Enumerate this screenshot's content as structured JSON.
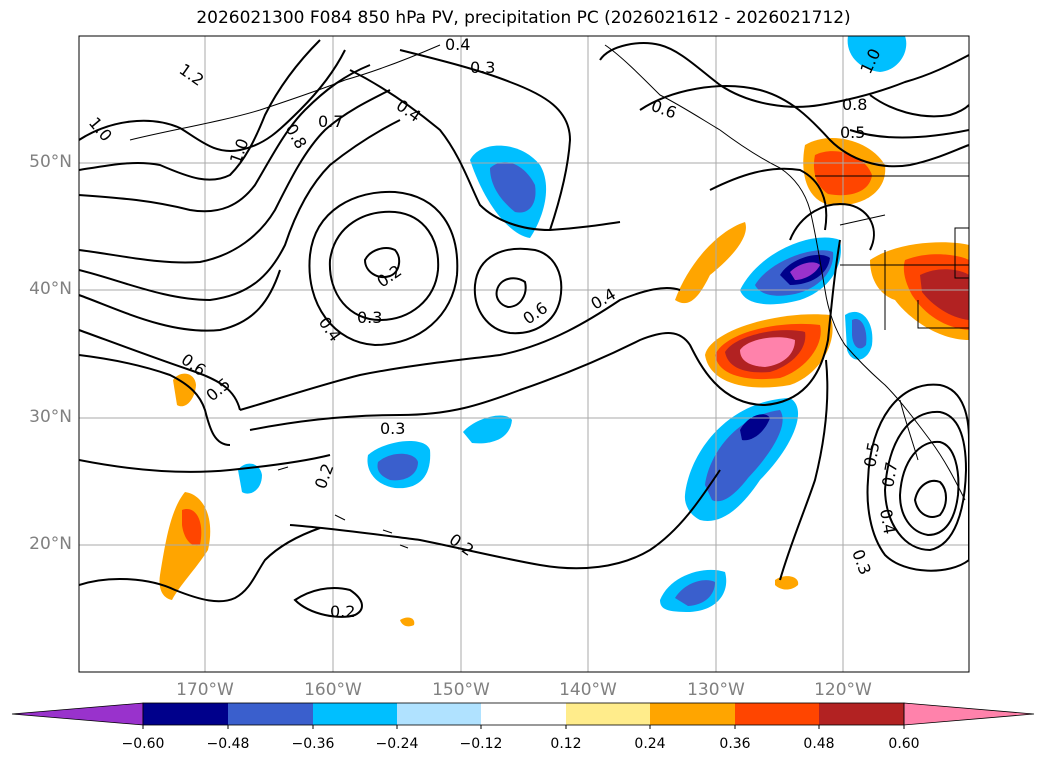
{
  "title": "2026021300 F084 850 hPa PV, precipitation PC (2026021612 - 2026021712)",
  "lat_labels": [
    "50°N",
    "40°N",
    "30°N",
    "20°N"
  ],
  "lon_labels": [
    "170°W",
    "160°W",
    "150°W",
    "140°W",
    "130°W",
    "120°W"
  ],
  "contour_labels": [
    "1.2",
    "1.0",
    "1.0",
    "0.8",
    "0.7",
    "0.4",
    "0.4",
    "0.3",
    "0.6",
    "0.2",
    "0.3",
    "0.4",
    "0.6",
    "0.4",
    "0.6",
    "0.5",
    "0.3",
    "0.2",
    "0.2",
    "0.2",
    "1.0",
    "0.8",
    "0.5",
    "0.5",
    "0.7",
    "0.4",
    "0.3"
  ],
  "colorbar": {
    "ticks": [
      "−0.60",
      "−0.48",
      "−0.36",
      "−0.24",
      "−0.12",
      "0.12",
      "0.24",
      "0.36",
      "0.48",
      "0.60"
    ],
    "colors": [
      "#9932cc",
      "#00008b",
      "#3a5fcd",
      "#00bfff",
      "#b0e2ff",
      "#ffffff",
      "#ffec8b",
      "#ffa500",
      "#ff4500",
      "#b22222",
      "#ff82ab"
    ]
  },
  "colors": {
    "grid": "#aaaaaa",
    "coast": "#000000",
    "contour": "#000000"
  }
}
